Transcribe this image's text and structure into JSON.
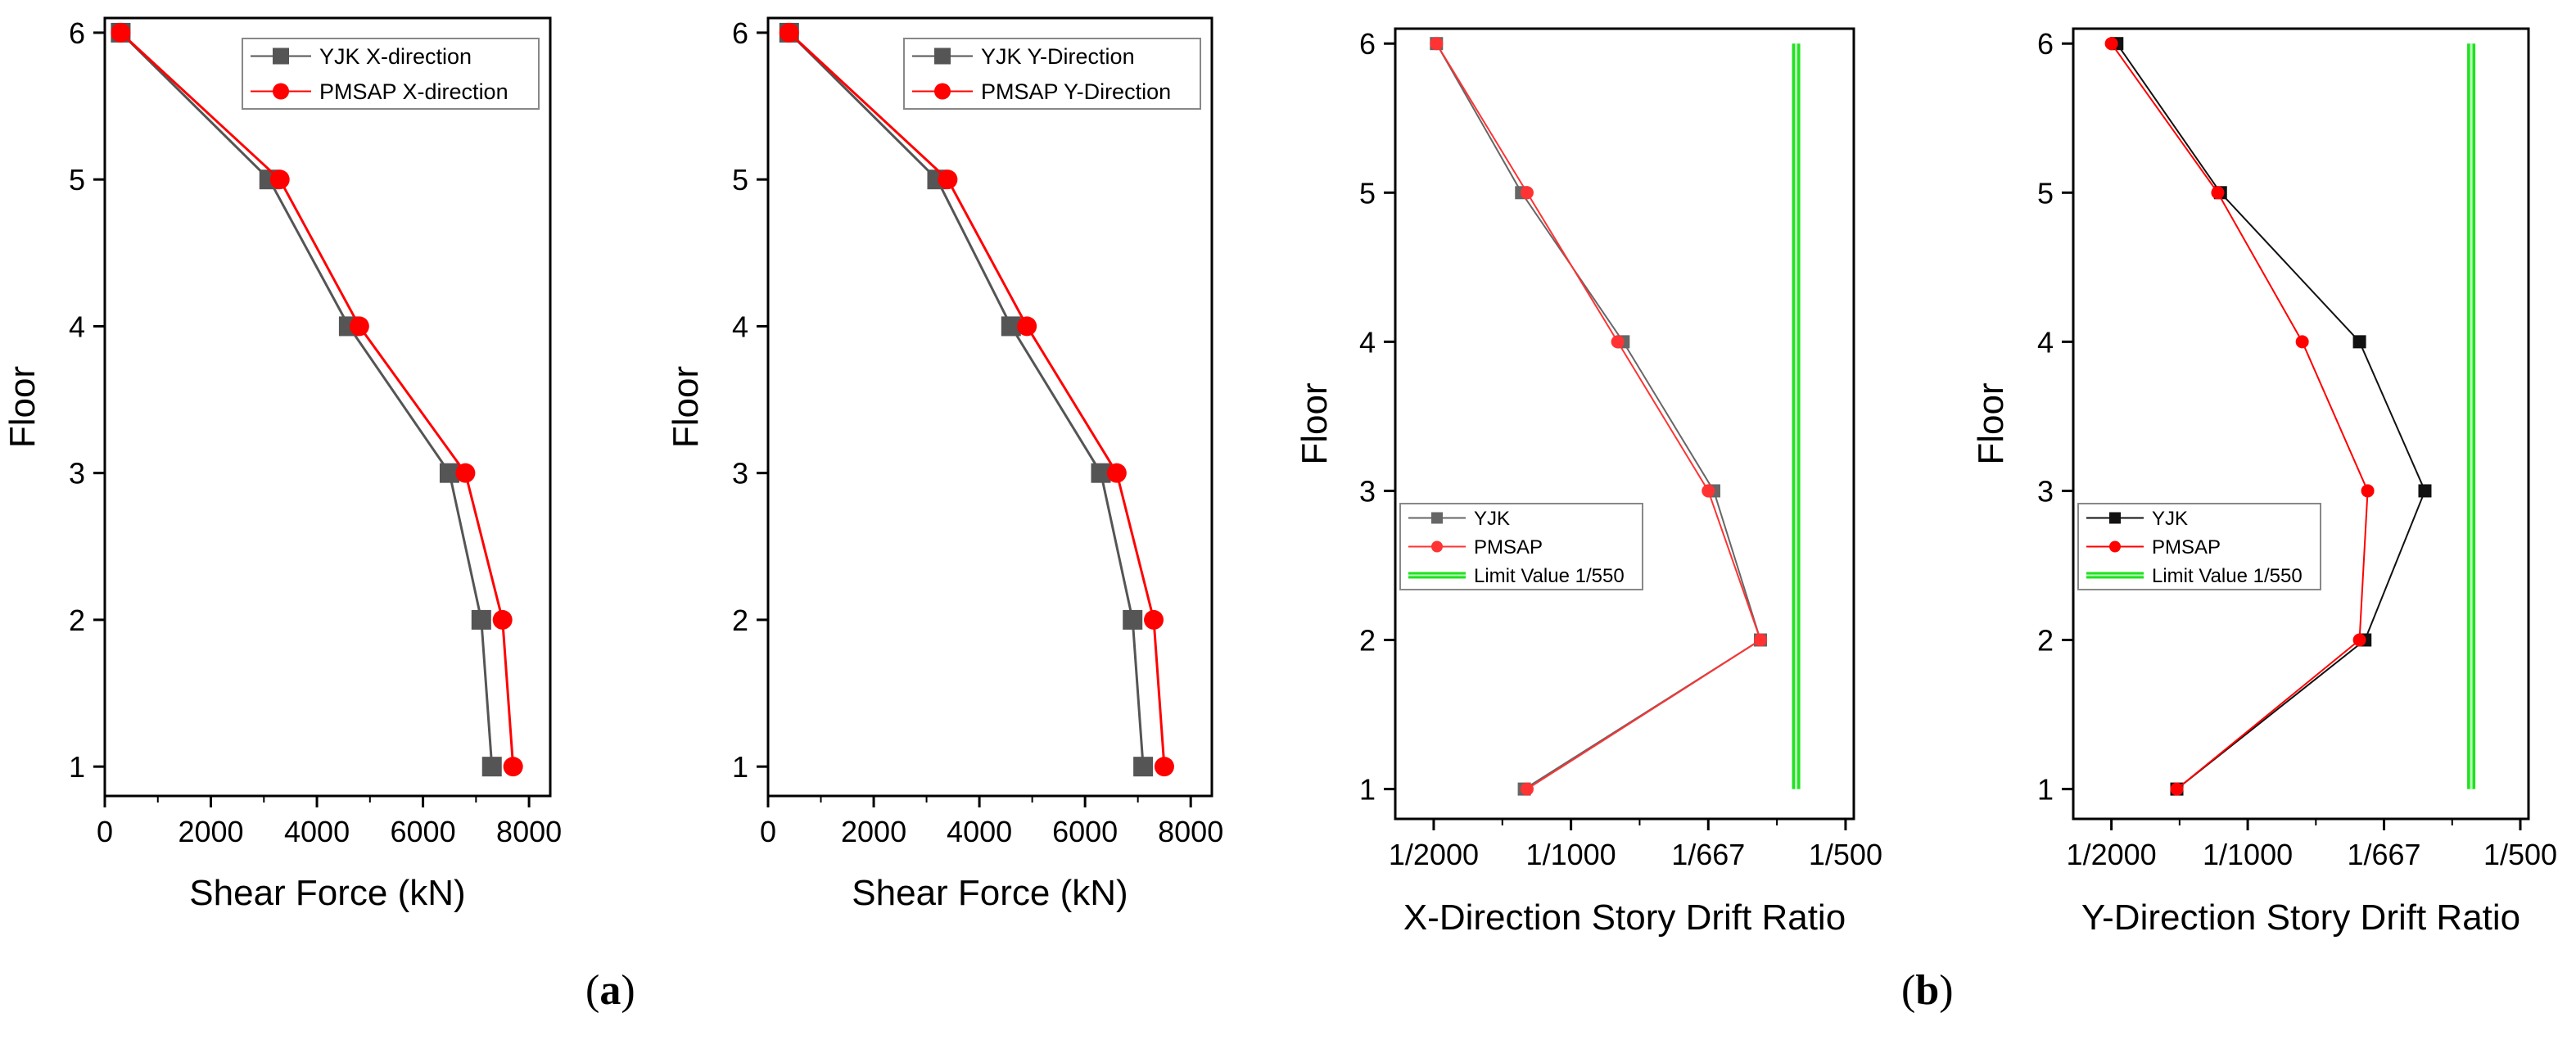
{
  "captions": {
    "a": "a",
    "b": "b"
  },
  "chart_data": [
    {
      "id": "p1",
      "type": "line",
      "xlabel": "Shear Force (kN)",
      "ylabel": "Floor",
      "xlim": [
        0,
        8400
      ],
      "ylim": [
        0.8,
        6.1
      ],
      "xticks": [
        0,
        2000,
        4000,
        6000,
        8000
      ],
      "xticklabels": [
        "0",
        "2000",
        "4000",
        "6000",
        "8000"
      ],
      "yticks": [
        1,
        2,
        3,
        4,
        5,
        6
      ],
      "yticklabels": [
        "1",
        "2",
        "3",
        "4",
        "5",
        "6"
      ],
      "legend_position": "top-right",
      "series": [
        {
          "name": "YJK X-direction",
          "color": "#555555",
          "marker": "square",
          "x": [
            7300,
            7100,
            6500,
            4600,
            3100,
            300
          ],
          "y": [
            1,
            2,
            3,
            4,
            5,
            6
          ]
        },
        {
          "name": "PMSAP X-direction",
          "color": "#ff0000",
          "marker": "circle",
          "x": [
            7700,
            7500,
            6800,
            4800,
            3300,
            300
          ],
          "y": [
            1,
            2,
            3,
            4,
            5,
            6
          ]
        }
      ]
    },
    {
      "id": "p2",
      "type": "line",
      "xlabel": "Shear Force (kN)",
      "ylabel": "Floor",
      "xlim": [
        0,
        8400
      ],
      "ylim": [
        0.8,
        6.1
      ],
      "xticks": [
        0,
        2000,
        4000,
        6000,
        8000
      ],
      "xticklabels": [
        "0",
        "2000",
        "4000",
        "6000",
        "8000"
      ],
      "yticks": [
        1,
        2,
        3,
        4,
        5,
        6
      ],
      "yticklabels": [
        "1",
        "2",
        "3",
        "4",
        "5",
        "6"
      ],
      "legend_position": "top-right",
      "series": [
        {
          "name": "YJK Y-Direction",
          "color": "#555555",
          "marker": "square",
          "x": [
            7100,
            6900,
            6300,
            4600,
            3200,
            400
          ],
          "y": [
            1,
            2,
            3,
            4,
            5,
            6
          ]
        },
        {
          "name": "PMSAP Y-Direction",
          "color": "#ff0000",
          "marker": "circle",
          "x": [
            7500,
            7300,
            6600,
            4900,
            3400,
            400
          ],
          "y": [
            1,
            2,
            3,
            4,
            5,
            6
          ]
        }
      ]
    },
    {
      "id": "p3",
      "type": "line",
      "xlabel": "X-Direction Story Drift Ratio",
      "ylabel": "Floor",
      "x_scale_note": "x values are drift ratios (1/N)",
      "xlim": [
        0.00036,
        0.00203
      ],
      "ylim": [
        0.8,
        6.1
      ],
      "xticks": [
        0.0005,
        0.001,
        0.0015,
        0.002
      ],
      "xticklabels": [
        "1/2000",
        "1/1000",
        "1/667",
        "1/500"
      ],
      "yticks": [
        1,
        2,
        3,
        4,
        5,
        6
      ],
      "yticklabels": [
        "1",
        "2",
        "3",
        "4",
        "5",
        "6"
      ],
      "legend_position": "middle-left",
      "series": [
        {
          "name": "YJK",
          "color": "#666666",
          "marker": "square",
          "x": [
            0.00083,
            0.00169,
            0.00152,
            0.00119,
            0.00082,
            0.00051
          ],
          "y": [
            1,
            2,
            3,
            4,
            5,
            6
          ]
        },
        {
          "name": "PMSAP",
          "color": "#ff3333",
          "marker": "circle",
          "x": [
            0.00084,
            0.00169,
            0.0015,
            0.00117,
            0.00084,
            0.00051
          ],
          "y": [
            1,
            2,
            3,
            4,
            5,
            6
          ]
        },
        {
          "name": "Limit Value 1/550",
          "color": "#22e022",
          "marker": "none",
          "style": "thick-line",
          "x": [
            0.00182,
            0.00182
          ],
          "y": [
            1,
            6
          ]
        }
      ]
    },
    {
      "id": "p4",
      "type": "line",
      "xlabel": "Y-Direction Story Drift Ratio",
      "ylabel": "Floor",
      "x_scale_note": "x values are drift ratios (1/N)",
      "xlim": [
        0.00036,
        0.00203
      ],
      "ylim": [
        0.8,
        6.1
      ],
      "xticks": [
        0.0005,
        0.001,
        0.0015,
        0.002
      ],
      "xticklabels": [
        "1/2000",
        "1/1000",
        "1/667",
        "1/500"
      ],
      "yticks": [
        1,
        2,
        3,
        4,
        5,
        6
      ],
      "yticklabels": [
        "1",
        "2",
        "3",
        "4",
        "5",
        "6"
      ],
      "legend_position": "middle-left",
      "series": [
        {
          "name": "YJK",
          "color": "#111111",
          "marker": "square",
          "x": [
            0.00074,
            0.00143,
            0.00165,
            0.00141,
            0.0009,
            0.00052
          ],
          "y": [
            1,
            2,
            3,
            4,
            5,
            6
          ]
        },
        {
          "name": "PMSAP",
          "color": "#ff0000",
          "marker": "circle",
          "x": [
            0.00074,
            0.00141,
            0.00144,
            0.0012,
            0.00089,
            0.0005
          ],
          "y": [
            1,
            2,
            3,
            4,
            5,
            6
          ]
        },
        {
          "name": "Limit Value 1/550",
          "color": "#22e022",
          "marker": "none",
          "style": "thick-line",
          "x": [
            0.00182,
            0.00182
          ],
          "y": [
            1,
            6
          ]
        }
      ]
    }
  ]
}
